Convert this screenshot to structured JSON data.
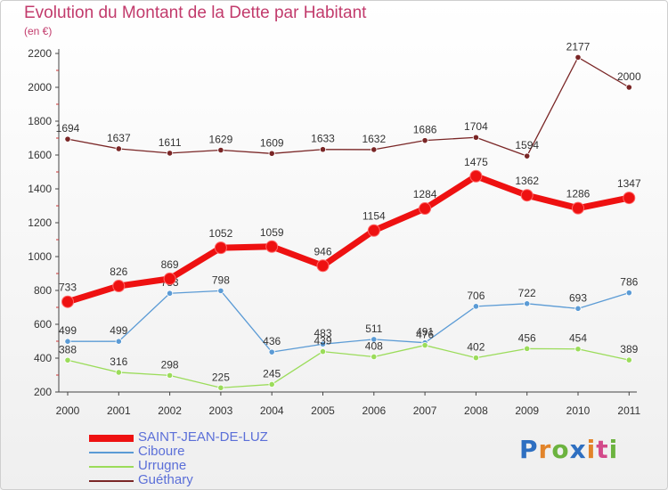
{
  "header": {
    "title": "Evolution du Montant de la Dette par Habitant",
    "unit": "(en €)"
  },
  "logo": {
    "text": "Proxiti"
  },
  "colors": {
    "axis_text": "#333333",
    "grid": "#e6e6e6"
  },
  "chart_data": {
    "type": "line",
    "title": "Evolution du Montant de la Dette par Habitant",
    "ylabel": "(en €)",
    "xlabel": "",
    "x": [
      "2000",
      "2001",
      "2002",
      "2003",
      "2004",
      "2005",
      "2006",
      "2007",
      "2008",
      "2009",
      "2010",
      "2011"
    ],
    "ylim": [
      200,
      2200
    ],
    "yticks": [
      200,
      400,
      600,
      800,
      1000,
      1200,
      1400,
      1600,
      1800,
      2000,
      2200
    ],
    "grid": false,
    "legend_position": "bottom-left",
    "series": [
      {
        "name": "SAINT-JEAN-DE-LUZ",
        "color": "#ee1111",
        "thick": true,
        "values": [
          733,
          826,
          869,
          1052,
          1059,
          946,
          1154,
          1284,
          1475,
          1362,
          1286,
          1347
        ]
      },
      {
        "name": "Ciboure",
        "color": "#5b9bd5",
        "thick": false,
        "values": [
          499,
          499,
          783,
          798,
          436,
          483,
          511,
          491,
          706,
          722,
          693,
          786
        ]
      },
      {
        "name": "Urrugne",
        "color": "#9bdc5a",
        "thick": false,
        "values": [
          388,
          316,
          298,
          225,
          245,
          439,
          408,
          476,
          402,
          456,
          454,
          389
        ]
      },
      {
        "name": "Guéthary",
        "color": "#7a2626",
        "thick": false,
        "values": [
          1694,
          1637,
          1611,
          1629,
          1609,
          1633,
          1632,
          1686,
          1704,
          1594,
          2177,
          2000
        ]
      }
    ]
  }
}
